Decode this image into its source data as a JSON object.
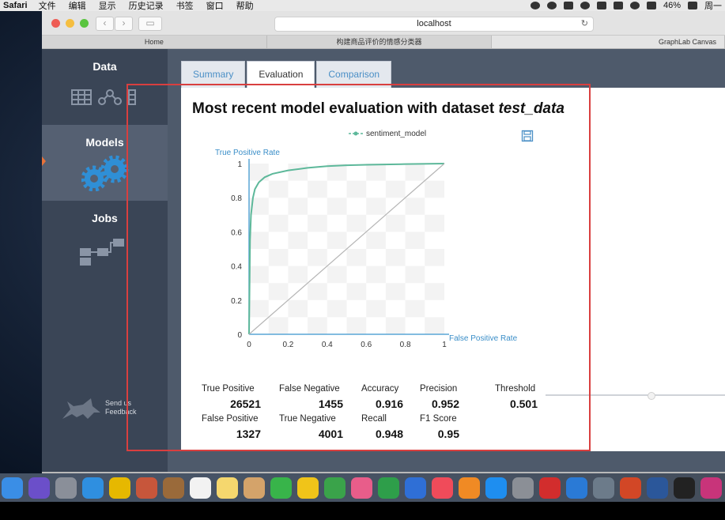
{
  "menubar": {
    "app": "Safari",
    "items": [
      "文件",
      "编辑",
      "显示",
      "历史记录",
      "书签",
      "窗口",
      "帮助"
    ],
    "battery": "46%",
    "clock": "周一"
  },
  "browser": {
    "url": "localhost",
    "tabs": [
      "Home",
      "构建商品评价的情感分类器",
      "GraphLab Canvas"
    ]
  },
  "sidebar": {
    "items": [
      {
        "label": "Data",
        "icon": "data-icons"
      },
      {
        "label": "Models",
        "icon": "gears-icon"
      },
      {
        "label": "Jobs",
        "icon": "jobs-flow-icon"
      }
    ],
    "active": "Models",
    "feedback": [
      "Send us",
      "Feedback"
    ]
  },
  "tabs": [
    "Summary",
    "Evaluation",
    "Comparison"
  ],
  "active_tab": "Evaluation",
  "evaluation": {
    "title_prefix": "Most recent model evaluation with dataset ",
    "dataset": "test_data",
    "stats": {
      "true_positive": {
        "label": "True Positive",
        "value": "26521"
      },
      "false_negative": {
        "label": "False Negative",
        "value": "1455"
      },
      "accuracy": {
        "label": "Accuracy",
        "value": "0.916"
      },
      "precision": {
        "label": "Precision",
        "value": "0.952"
      },
      "threshold": {
        "label": "Threshold",
        "value": "0.501"
      },
      "false_positive": {
        "label": "False Positive",
        "value": "1327"
      },
      "true_negative": {
        "label": "True Negative",
        "value": "4001"
      },
      "recall": {
        "label": "Recall",
        "value": "0.948"
      },
      "f1_score": {
        "label": "F1 Score",
        "value": "0.95"
      }
    }
  },
  "chart_data": {
    "type": "line",
    "title": "",
    "xlabel": "False Positive Rate",
    "ylabel": "True Positive Rate",
    "xlim": [
      0,
      1
    ],
    "ylim": [
      0,
      1
    ],
    "xticks": [
      "0",
      "0.2",
      "0.4",
      "0.6",
      "0.8",
      "1"
    ],
    "yticks": [
      "0",
      "0.2",
      "0.4",
      "0.6",
      "0.8",
      "1"
    ],
    "legend": "top-center",
    "grid": true,
    "series": [
      {
        "name": "sentiment_model",
        "color": "#5db89a",
        "x": [
          0,
          0.005,
          0.01,
          0.02,
          0.03,
          0.05,
          0.08,
          0.12,
          0.2,
          0.3,
          0.4,
          0.5,
          0.6,
          0.8,
          1.0
        ],
        "y": [
          0,
          0.55,
          0.7,
          0.8,
          0.85,
          0.89,
          0.92,
          0.94,
          0.96,
          0.975,
          0.985,
          0.99,
          0.993,
          0.997,
          1.0
        ]
      },
      {
        "name": "",
        "color": "#b5b5b5",
        "x": [
          0,
          1
        ],
        "y": [
          0,
          1
        ]
      }
    ]
  },
  "threshold_slider": {
    "value": 0.501
  },
  "dock": [
    {
      "name": "finder-icon",
      "color": "#3a8ee6"
    },
    {
      "name": "siri-icon",
      "color": "#6b4fc9"
    },
    {
      "name": "launchpad-icon",
      "color": "#8a8f99"
    },
    {
      "name": "safari-icon",
      "color": "#2f8fe0"
    },
    {
      "name": "chrome-icon",
      "color": "#e6b800"
    },
    {
      "name": "preview-icon",
      "color": "#c7563b"
    },
    {
      "name": "notebook-icon",
      "color": "#9a6a3a"
    },
    {
      "name": "calendar-icon",
      "color": "#f2f2f2"
    },
    {
      "name": "notes-icon",
      "color": "#f5d76e"
    },
    {
      "name": "contacts-icon",
      "color": "#d4a36a"
    },
    {
      "name": "messages-icon",
      "color": "#38b44a"
    },
    {
      "name": "stickies-icon",
      "color": "#f0c419"
    },
    {
      "name": "facetime-icon",
      "color": "#3aa34a"
    },
    {
      "name": "photos-icon",
      "color": "#e85d8a"
    },
    {
      "name": "numbers-icon",
      "color": "#2e9e4a"
    },
    {
      "name": "keynote-icon",
      "color": "#2f6fd6"
    },
    {
      "name": "music-icon",
      "color": "#f04b5a"
    },
    {
      "name": "books-icon",
      "color": "#f08a24"
    },
    {
      "name": "appstore-icon",
      "color": "#1e8ef0"
    },
    {
      "name": "settings-icon",
      "color": "#8b8f96"
    },
    {
      "name": "netease-icon",
      "color": "#d22d2d"
    },
    {
      "name": "edge-icon",
      "color": "#2a7ad6"
    },
    {
      "name": "image-capture-icon",
      "color": "#6c7b8a"
    },
    {
      "name": "powerpoint-icon",
      "color": "#d24726"
    },
    {
      "name": "word-icon",
      "color": "#2b579a"
    },
    {
      "name": "terminal-icon",
      "color": "#222222"
    },
    {
      "name": "graphlab-icon",
      "color": "#c8347a"
    }
  ]
}
